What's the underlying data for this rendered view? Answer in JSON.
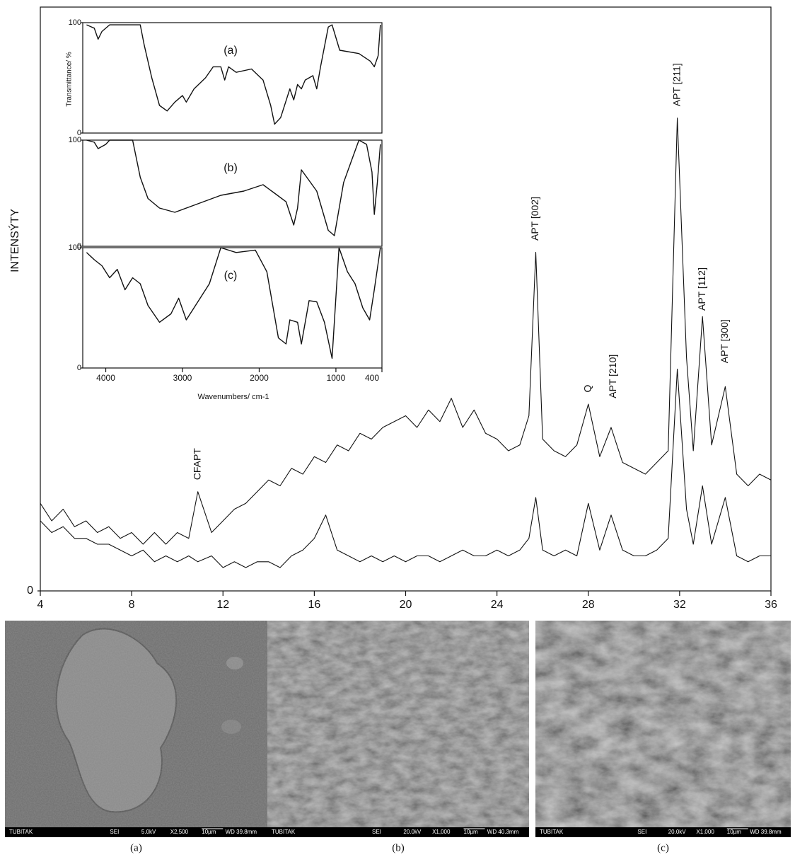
{
  "chart_data": [
    {
      "type": "line",
      "ylabel": "INTENSÝTY",
      "xlim": [
        4,
        36
      ],
      "xticks": [
        4,
        8,
        12,
        16,
        20,
        24,
        28,
        32,
        36
      ],
      "ylim": [
        0,
        100
      ],
      "yticks": [
        0
      ],
      "x": [
        4,
        4.5,
        5,
        5.5,
        6,
        6.5,
        7,
        7.5,
        8,
        8.5,
        9,
        9.5,
        10,
        10.5,
        10.9,
        11.5,
        12,
        12.5,
        13,
        13.5,
        14,
        14.5,
        15,
        15.5,
        16,
        16.5,
        17,
        17.5,
        18,
        18.5,
        19,
        19.5,
        20,
        20.5,
        21,
        21.5,
        22,
        22.5,
        23,
        23.5,
        24,
        24.5,
        25,
        25.4,
        25.7,
        26,
        26.5,
        27,
        27.5,
        28,
        28.5,
        29,
        29.5,
        30,
        30.5,
        31,
        31.5,
        31.9,
        32.3,
        32.6,
        33,
        33.4,
        34,
        34.5,
        35,
        35.5,
        36
      ],
      "series": [
        {
          "color": "#111111",
          "values": [
            15,
            12,
            14,
            11,
            12,
            10,
            11,
            9,
            10,
            8,
            10,
            8,
            10,
            9,
            17,
            10,
            12,
            14,
            15,
            17,
            19,
            18,
            21,
            20,
            23,
            22,
            25,
            24,
            27,
            26,
            28,
            29,
            30,
            28,
            31,
            29,
            33,
            28,
            31,
            27,
            26,
            24,
            25,
            30,
            58,
            26,
            24,
            23,
            25,
            32,
            23,
            28,
            22,
            21,
            20,
            22,
            24,
            81,
            40,
            24,
            47,
            25,
            35,
            20,
            18,
            20,
            19
          ]
        },
        {
          "color": "#111111",
          "values": [
            12,
            10,
            11,
            9,
            9,
            8,
            8,
            7,
            6,
            7,
            5,
            6,
            5,
            6,
            5,
            6,
            4,
            5,
            4,
            5,
            5,
            4,
            6,
            7,
            9,
            13,
            7,
            6,
            5,
            6,
            5,
            6,
            5,
            6,
            6,
            5,
            6,
            7,
            6,
            6,
            7,
            6,
            7,
            9,
            16,
            7,
            6,
            7,
            6,
            15,
            7,
            13,
            7,
            6,
            6,
            7,
            9,
            38,
            14,
            8,
            18,
            8,
            16,
            6,
            5,
            6,
            6
          ]
        }
      ],
      "annotations": [
        {
          "text": "CFAPT",
          "x": 10.9,
          "y": 19
        },
        {
          "text": "APT [002]",
          "x": 25.7,
          "y": 60
        },
        {
          "text": "Q",
          "x": 28,
          "y": 34
        },
        {
          "text": "APT [210]",
          "x": 29.1,
          "y": 33
        },
        {
          "text": "APT [211]",
          "x": 31.9,
          "y": 83
        },
        {
          "text": "APT [112]",
          "x": 33,
          "y": 48
        },
        {
          "text": "APT [300]",
          "x": 34,
          "y": 39
        }
      ]
    },
    {
      "type": "line",
      "ylabel": "Transmittance/ %",
      "xlabel": "Wavenumbers/ cm-1",
      "xlim": [
        4300,
        400
      ],
      "xticks": [
        4000,
        3000,
        2000,
        1000,
        400
      ],
      "panels": [
        {
          "label": "(a)",
          "ylim": [
            0,
            100
          ],
          "yticks": [
            0,
            100
          ],
          "color": "#111111",
          "x": [
            4250,
            4150,
            4100,
            4050,
            3950,
            3700,
            3550,
            3500,
            3400,
            3300,
            3200,
            3100,
            3000,
            2950,
            2850,
            2700,
            2600,
            2500,
            2450,
            2400,
            2300,
            2100,
            1950,
            1850,
            1800,
            1720,
            1600,
            1550,
            1500,
            1450,
            1400,
            1300,
            1250,
            1200,
            1100,
            1050,
            950,
            700,
            550,
            500,
            450,
            420
          ],
          "values": [
            98,
            95,
            85,
            92,
            98,
            98,
            98,
            80,
            50,
            25,
            20,
            28,
            34,
            28,
            40,
            50,
            60,
            60,
            48,
            60,
            55,
            58,
            48,
            25,
            8,
            14,
            40,
            30,
            44,
            40,
            48,
            52,
            40,
            60,
            96,
            98,
            75,
            72,
            65,
            60,
            70,
            98
          ]
        },
        {
          "label": "(b)",
          "ylim": [
            0,
            100
          ],
          "yticks": [
            0,
            100
          ],
          "color": "#111111",
          "x": [
            4250,
            4150,
            4100,
            4000,
            3950,
            3650,
            3550,
            3450,
            3300,
            3100,
            2800,
            2500,
            2200,
            1950,
            1800,
            1650,
            1550,
            1500,
            1450,
            1350,
            1250,
            1100,
            1020,
            900,
            800,
            700,
            600,
            530,
            500,
            460,
            420
          ],
          "values": [
            100,
            98,
            92,
            96,
            100,
            100,
            65,
            45,
            36,
            32,
            40,
            48,
            52,
            58,
            50,
            42,
            20,
            36,
            72,
            62,
            52,
            15,
            10,
            60,
            80,
            100,
            96,
            70,
            30,
            60,
            96
          ]
        },
        {
          "label": "(c)",
          "ylim": [
            0,
            100
          ],
          "yticks": [
            0,
            100
          ],
          "color": "#111111",
          "x": [
            4250,
            4150,
            4050,
            3950,
            3850,
            3750,
            3650,
            3550,
            3450,
            3300,
            3150,
            3050,
            2950,
            2800,
            2650,
            2500,
            2300,
            2050,
            1900,
            1750,
            1650,
            1600,
            1500,
            1450,
            1350,
            1250,
            1150,
            1050,
            960,
            850,
            750,
            650,
            560,
            500,
            420
          ],
          "values": [
            96,
            90,
            85,
            75,
            82,
            65,
            75,
            70,
            52,
            38,
            45,
            58,
            40,
            55,
            70,
            100,
            96,
            98,
            80,
            25,
            20,
            40,
            38,
            20,
            56,
            55,
            38,
            8,
            100,
            80,
            70,
            50,
            40,
            65,
            100
          ]
        }
      ]
    }
  ],
  "sem_panels": [
    {
      "caption": "(a)",
      "info": [
        "TUBITAK",
        "SEI",
        "5.0kV",
        "X2,500",
        "10µm",
        "WD 39.8mm"
      ]
    },
    {
      "caption": "(b)",
      "info": [
        "TUBITAK",
        "SEI",
        "20.0kV",
        "X1,000",
        "10µm",
        "WD 40.3mm"
      ]
    },
    {
      "caption": "(c)",
      "info": [
        "TUBITAK",
        "SEI",
        "20.0kV",
        "X1,000",
        "10µm",
        "WD 39.8mm"
      ]
    }
  ]
}
